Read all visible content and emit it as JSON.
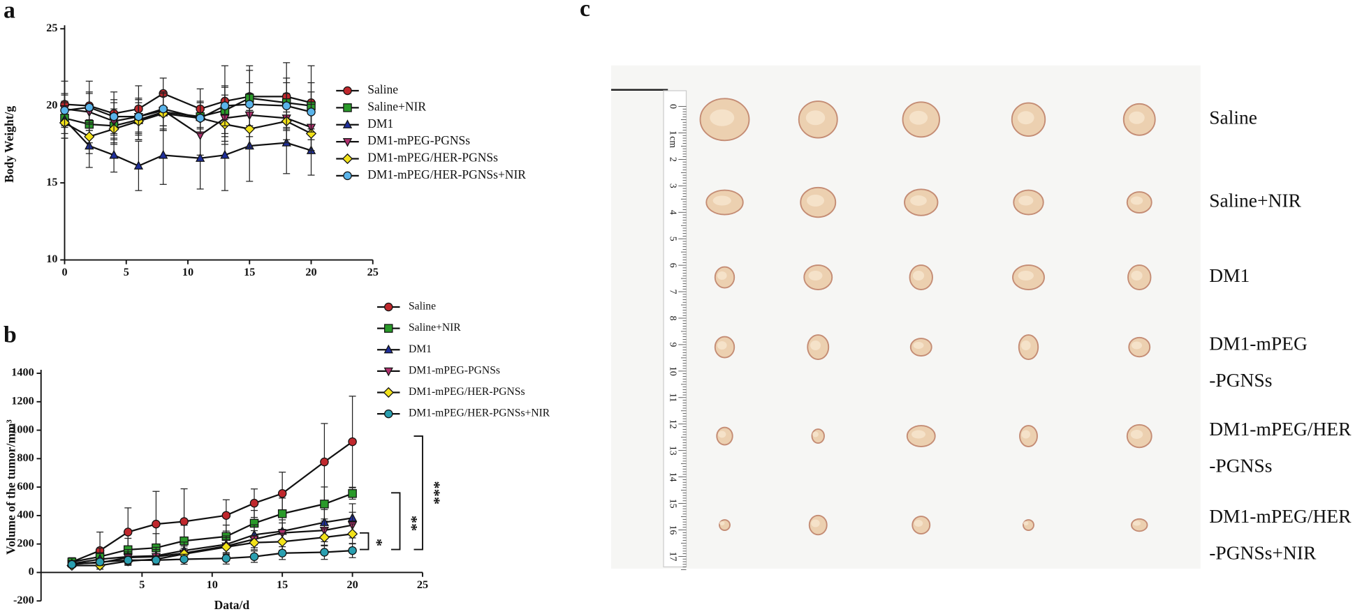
{
  "panel_labels": [
    "a",
    "b",
    "c"
  ],
  "chart_data": [
    {
      "type": "line",
      "y_label": "Body Weight/g",
      "x": [
        0,
        2,
        4,
        6,
        8,
        11,
        13,
        15,
        18,
        20
      ],
      "xlim": [
        0,
        25
      ],
      "xticks": [
        0,
        5,
        10,
        15,
        20,
        25
      ],
      "ylim": [
        10,
        25
      ],
      "yticks": [
        10,
        15,
        20,
        25
      ],
      "series": [
        {
          "name": "Saline",
          "color": "#c0282d",
          "marker": "circle",
          "values": [
            20.1,
            20.0,
            19.5,
            19.8,
            20.8,
            19.8,
            20.3,
            20.6,
            20.6,
            20.2
          ],
          "errors": [
            1.5,
            1.6,
            1.4,
            1.5,
            1.0,
            1.3,
            2.3,
            2.0,
            2.2,
            2.4
          ]
        },
        {
          "name": "Saline+NIR",
          "color": "#2a9a2a",
          "marker": "square",
          "values": [
            19.2,
            18.8,
            18.7,
            19.1,
            19.6,
            19.3,
            19.7,
            20.5,
            20.2,
            20.0
          ],
          "errors": [
            1.0,
            1.2,
            1.1,
            1.3,
            1.2,
            1.0,
            1.5,
            1.8,
            1.6,
            1.5
          ]
        },
        {
          "name": "DM1",
          "color": "#1f2f9a",
          "marker": "triangle-up",
          "values": [
            19.1,
            17.4,
            16.8,
            16.1,
            16.8,
            16.6,
            16.8,
            17.4,
            17.6,
            17.1
          ],
          "errors": [
            1.2,
            1.4,
            1.1,
            1.6,
            1.9,
            2.0,
            2.3,
            2.3,
            2.0,
            1.6
          ]
        },
        {
          "name": "DM1-mPEG-PGNSs",
          "color": "#b0306e",
          "marker": "triangle-down",
          "values": [
            19.8,
            19.6,
            19.0,
            19.3,
            19.7,
            18.1,
            19.2,
            19.4,
            19.2,
            18.6
          ],
          "errors": [
            1.0,
            1.2,
            1.2,
            1.1,
            1.2,
            1.3,
            1.5,
            1.4,
            1.6,
            1.5
          ]
        },
        {
          "name": "DM1-mPEG/HER-PGNSs",
          "color": "#f2e21a",
          "marker": "diamond",
          "values": [
            18.9,
            18.0,
            18.5,
            19.0,
            19.5,
            19.2,
            18.8,
            18.5,
            19.0,
            18.2
          ],
          "errors": [
            1.0,
            1.1,
            1.0,
            1.2,
            1.1,
            1.0,
            1.3,
            1.2,
            1.2,
            1.3
          ]
        },
        {
          "name": "DM1-mPEG/HER-PGNSs+NIR",
          "color": "#5ab4ea",
          "marker": "circle",
          "values": [
            19.7,
            19.9,
            19.3,
            19.3,
            19.8,
            19.2,
            20.0,
            20.1,
            20.0,
            19.6
          ],
          "errors": [
            1.0,
            1.0,
            1.1,
            1.2,
            1.1,
            1.0,
            1.3,
            1.4,
            1.5,
            1.3
          ]
        }
      ]
    },
    {
      "type": "line",
      "x_label": "Data/d",
      "y_label": "Volume of the tumor/mm³",
      "x": [
        0,
        2,
        4,
        6,
        8,
        11,
        13,
        15,
        18,
        20
      ],
      "xlim": [
        -2.2,
        25
      ],
      "xticks": [
        5,
        10,
        15,
        20,
        25
      ],
      "ylim": [
        -200,
        1400
      ],
      "yticks": [
        -200,
        0,
        200,
        400,
        600,
        800,
        1000,
        1200,
        1400
      ],
      "annotations": [
        "*",
        "**",
        "***"
      ],
      "series": [
        {
          "name": "Saline",
          "color": "#c0282d",
          "marker": "circle",
          "values": [
            74,
            154,
            284,
            340,
            358,
            401,
            487,
            555,
            777,
            919
          ],
          "errors": [
            30,
            130,
            170,
            230,
            230,
            110,
            100,
            150,
            270,
            320
          ]
        },
        {
          "name": "Saline+NIR",
          "color": "#2a9a2a",
          "marker": "square",
          "values": [
            74,
            111,
            160,
            173,
            222,
            253,
            346,
            413,
            481,
            555
          ],
          "errors": [
            20,
            60,
            80,
            100,
            110,
            80,
            90,
            110,
            120,
            40
          ]
        },
        {
          "name": "DM1",
          "color": "#1f2f9a",
          "marker": "triangle-up",
          "values": [
            62,
            93,
            111,
            117,
            154,
            197,
            265,
            290,
            352,
            383
          ],
          "errors": [
            20,
            40,
            50,
            60,
            60,
            60,
            70,
            80,
            90,
            100
          ]
        },
        {
          "name": "DM1-mPEG-PGNSs",
          "color": "#b0306e",
          "marker": "triangle-down",
          "values": [
            62,
            68,
            105,
            111,
            136,
            185,
            234,
            278,
            296,
            333
          ],
          "errors": [
            20,
            30,
            40,
            50,
            50,
            60,
            60,
            70,
            80,
            90
          ]
        },
        {
          "name": "DM1-mPEG/HER-PGNSs",
          "color": "#f2e21a",
          "marker": "diamond",
          "values": [
            49,
            49,
            80,
            93,
            130,
            179,
            210,
            216,
            247,
            271
          ],
          "errors": [
            15,
            25,
            30,
            40,
            40,
            50,
            50,
            60,
            60,
            70
          ]
        },
        {
          "name": "DM1-mPEG/HER-PGNSs+NIR",
          "color": "#2a9fb0",
          "marker": "circle",
          "values": [
            56,
            74,
            86,
            86,
            93,
            99,
            111,
            136,
            142,
            154
          ],
          "errors": [
            15,
            25,
            30,
            30,
            35,
            40,
            40,
            45,
            50,
            50
          ]
        }
      ]
    }
  ],
  "photo": {
    "ruler_ticks": [
      "0",
      "1",
      "2",
      "3",
      "4",
      "5",
      "6",
      "7",
      "8",
      "9",
      "10",
      "11",
      "12",
      "13",
      "14",
      "15",
      "16",
      "17"
    ],
    "ruler_unit": "cm",
    "groups": [
      [
        "Saline"
      ],
      [
        "Saline+NIR"
      ],
      [
        "DM1"
      ],
      [
        "DM1-mPEG",
        "-PGNSs"
      ],
      [
        "DM1-mPEG/HER",
        "-PGNSs"
      ],
      [
        "DM1-mPEG/HER",
        "-PGNSs+NIR"
      ]
    ]
  }
}
